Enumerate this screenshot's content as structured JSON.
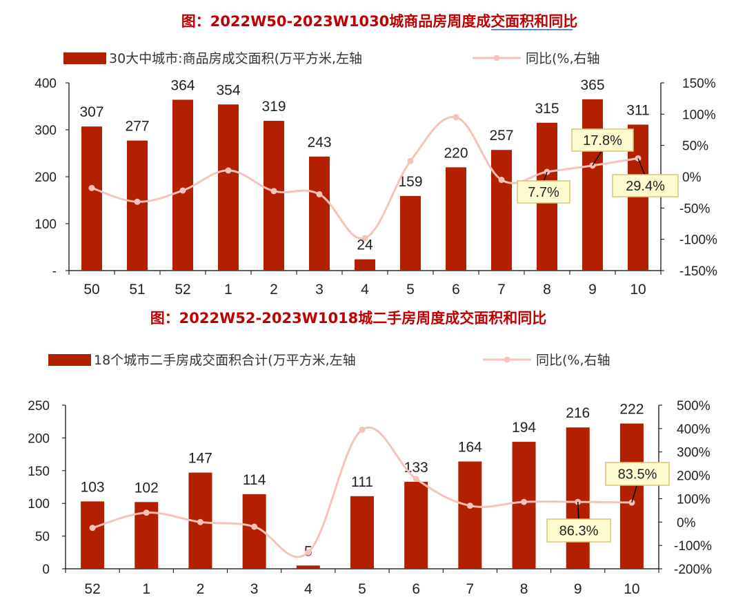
{
  "colors": {
    "bar": "#b32000",
    "line": "#f6c3b8",
    "callout_fill": "#fffbd0",
    "callout_border": "#d8c47a",
    "title": "#c00000"
  },
  "chart_data": [
    {
      "type": "bar",
      "title": "图：2022W50-2023W1030城商品房周度成交面积和同比",
      "categories": [
        "50",
        "51",
        "52",
        "1",
        "2",
        "3",
        "4",
        "5",
        "6",
        "7",
        "8",
        "9",
        "10"
      ],
      "series": [
        {
          "name": "30大中城市:商品房成交面积(万平方米,左轴",
          "type": "bar",
          "axis": "left",
          "values": [
            307,
            277,
            364,
            354,
            319,
            243,
            24,
            159,
            220,
            257,
            315,
            365,
            311
          ]
        },
        {
          "name": "同比(%,右轴",
          "type": "line",
          "axis": "right",
          "values": [
            -18,
            -40,
            -22,
            10,
            -23,
            -28,
            -98,
            25,
            95,
            -5,
            7.7,
            17.8,
            29.4
          ]
        }
      ],
      "bar_labels": [
        "307",
        "277",
        "364",
        "354",
        "319",
        "243",
        "24",
        "159",
        "220",
        "257",
        "315",
        "365",
        "311"
      ],
      "y_left": {
        "range": [
          0,
          400
        ],
        "ticks": [
          0,
          100,
          200,
          300,
          400
        ],
        "tick_labels": [
          "-",
          "100",
          "200",
          "300",
          "400"
        ]
      },
      "y_right": {
        "range": [
          -150,
          150
        ],
        "ticks": [
          150,
          100,
          50,
          0,
          -50,
          -100,
          -150
        ],
        "tick_labels": [
          "150%",
          "100%",
          "50%",
          "0%",
          "-50%",
          "-100%",
          "-150%"
        ]
      },
      "callouts": [
        {
          "index": 10,
          "text": "7.7%"
        },
        {
          "index": 11,
          "text": "17.8%"
        },
        {
          "index": 12,
          "text": "29.4%"
        }
      ],
      "legend_position": "top"
    },
    {
      "type": "bar",
      "title": "图：2022W52-2023W1018城二手房周度成交面积和同比",
      "categories": [
        "52",
        "1",
        "2",
        "3",
        "4",
        "5",
        "6",
        "7",
        "8",
        "9",
        "10"
      ],
      "series": [
        {
          "name": "18个城市二手房成交面积合计(万平方米,左轴",
          "type": "bar",
          "axis": "left",
          "values": [
            103,
            102,
            147,
            114,
            5,
            111,
            133,
            164,
            194,
            216,
            222
          ]
        },
        {
          "name": "同比(%,右轴",
          "type": "line",
          "axis": "right",
          "values": [
            -25,
            40,
            0,
            -20,
            -130,
            395,
            185,
            70,
            86.3,
            86.3,
            83.5
          ]
        }
      ],
      "bar_labels": [
        "103",
        "102",
        "147",
        "114",
        "5",
        "111",
        "133",
        "164",
        "194",
        "216",
        "222"
      ],
      "y_left": {
        "range": [
          0,
          250
        ],
        "ticks": [
          0,
          50,
          100,
          150,
          200,
          250
        ],
        "tick_labels": [
          "0",
          "50",
          "100",
          "150",
          "200",
          "250"
        ]
      },
      "y_right": {
        "range": [
          -200,
          500
        ],
        "ticks": [
          500,
          400,
          300,
          200,
          100,
          0,
          -100,
          -200
        ],
        "tick_labels": [
          "500%",
          "400%",
          "300%",
          "200%",
          "100%",
          "0%",
          "-100%",
          "-200%"
        ]
      },
      "callouts": [
        {
          "index": 9,
          "text": "86.3%"
        },
        {
          "index": 10,
          "text": "83.5%"
        }
      ],
      "legend_position": "top"
    }
  ]
}
